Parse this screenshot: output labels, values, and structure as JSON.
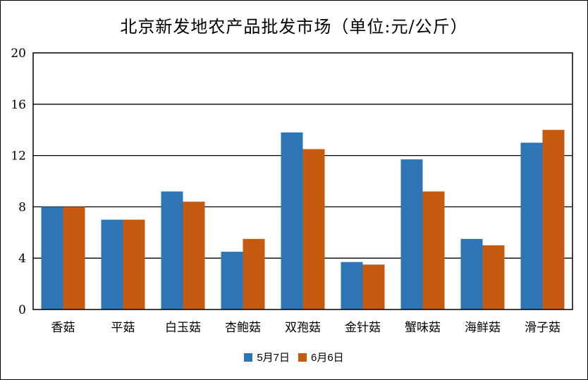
{
  "chart_data": {
    "type": "bar",
    "title": "北京新发地农产品批发市场（单位:元/公斤）",
    "xlabel": "",
    "ylabel": "",
    "ylim": [
      0,
      20
    ],
    "yticks": [
      0,
      4,
      8,
      12,
      16,
      20
    ],
    "grid": true,
    "legend_position": "bottom",
    "categories": [
      "香菇",
      "平菇",
      "白玉菇",
      "杏鲍菇",
      "双孢菇",
      "金针菇",
      "蟹味菇",
      "海鲜菇",
      "滑子菇"
    ],
    "series": [
      {
        "name": "5月7日",
        "color": "#2E75B6",
        "values": [
          8,
          7,
          9.2,
          4.5,
          13.8,
          3.7,
          11.7,
          5.5,
          13
        ]
      },
      {
        "name": "6月6日",
        "color": "#C55A11",
        "values": [
          8,
          7,
          8.4,
          5.5,
          12.5,
          3.5,
          9.2,
          5,
          14
        ]
      }
    ]
  }
}
